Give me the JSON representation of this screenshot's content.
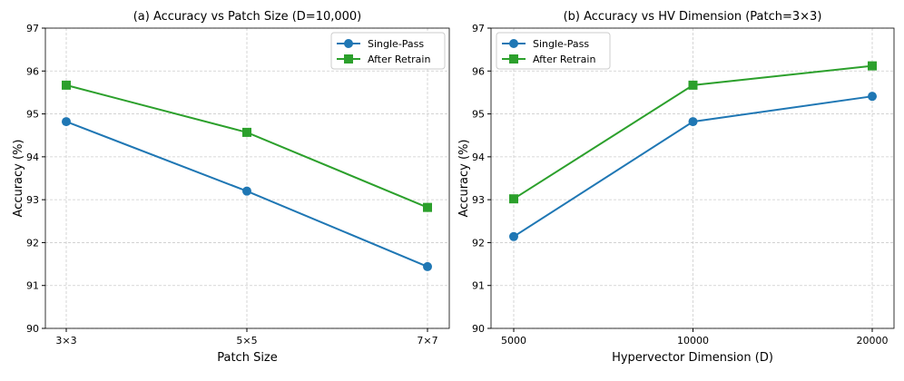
{
  "colors": {
    "single": "#1f77b4",
    "retrain": "#2ca02c",
    "grid": "#cccccc"
  },
  "chart_data": [
    {
      "type": "line",
      "title": "(a) Accuracy vs Patch Size (D=10,000)",
      "xlabel": "Patch Size",
      "ylabel": "Accuracy (%)",
      "x_scale": "categorical",
      "categories": [
        "3×3",
        "5×5",
        "7×7"
      ],
      "ylim": [
        90,
        97
      ],
      "yticks": [
        90,
        91,
        92,
        93,
        94,
        95,
        96,
        97
      ],
      "grid": true,
      "legend": "top-right",
      "series": [
        {
          "name": "Single-Pass",
          "marker": "circle",
          "values": [
            94.82,
            93.2,
            91.44
          ]
        },
        {
          "name": "After Retrain",
          "marker": "square",
          "values": [
            95.67,
            94.57,
            92.82
          ]
        }
      ]
    },
    {
      "type": "line",
      "title": "(b) Accuracy vs HV Dimension (Patch=3×3)",
      "xlabel": "Hypervector Dimension (D)",
      "ylabel": "Accuracy (%)",
      "x_scale": "log",
      "x": [
        5000,
        10000,
        20000
      ],
      "xtick_labels": [
        "5000",
        "10000",
        "20000"
      ],
      "ylim": [
        90,
        97
      ],
      "yticks": [
        90,
        91,
        92,
        93,
        94,
        95,
        96,
        97
      ],
      "grid": true,
      "legend": "top-left",
      "series": [
        {
          "name": "Single-Pass",
          "marker": "circle",
          "values": [
            92.14,
            94.82,
            95.41
          ]
        },
        {
          "name": "After Retrain",
          "marker": "square",
          "values": [
            93.02,
            95.67,
            96.12
          ]
        }
      ]
    }
  ]
}
